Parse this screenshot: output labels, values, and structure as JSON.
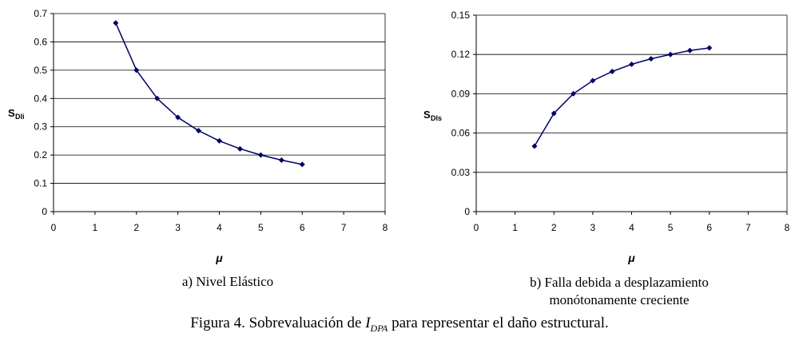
{
  "chart_data": [
    {
      "type": "line",
      "title": "",
      "xlabel": "μ",
      "ylabel": "S",
      "ylabel_sub": "Dli",
      "xlim": [
        0,
        8
      ],
      "ylim": [
        0,
        0.7
      ],
      "xticks": [
        "0",
        "1",
        "2",
        "3",
        "4",
        "5",
        "6",
        "7",
        "8"
      ],
      "yticks": [
        "0",
        "0.1",
        "0.2",
        "0.3",
        "0.4",
        "0.5",
        "0.6",
        "0.7"
      ],
      "grid": "horizontal",
      "series": [
        {
          "x": [
            1.5,
            2,
            2.5,
            3,
            3.5,
            4,
            4.5,
            5,
            5.5,
            6
          ],
          "y": [
            0.667,
            0.5,
            0.4,
            0.333,
            0.286,
            0.25,
            0.222,
            0.2,
            0.182,
            0.167
          ],
          "color": "#000066"
        }
      ]
    },
    {
      "type": "line",
      "title": "",
      "xlabel": "μ",
      "ylabel": "S",
      "ylabel_sub": "Dls",
      "xlim": [
        0,
        8
      ],
      "ylim": [
        0,
        0.15
      ],
      "xticks": [
        "0",
        "1",
        "2",
        "3",
        "4",
        "5",
        "6",
        "7",
        "8"
      ],
      "yticks": [
        "0",
        "0.03",
        "0.06",
        "0.09",
        "0.12",
        "0.15"
      ],
      "grid": "horizontal",
      "series": [
        {
          "x": [
            1.5,
            2,
            2.5,
            3,
            3.5,
            4,
            4.5,
            5,
            5.5,
            6
          ],
          "y": [
            0.05,
            0.075,
            0.09,
            0.1,
            0.107,
            0.1125,
            0.1167,
            0.12,
            0.123,
            0.125
          ],
          "color": "#000066"
        }
      ]
    }
  ],
  "captions": {
    "a": "a) Nivel Elástico",
    "b_line1": "b) Falla debida a desplazamiento",
    "b_line2": "monótonamente creciente",
    "figure_pre": "Figura 4. Sobrevaluación de ",
    "figure_var": "I",
    "figure_var_sub": "DPA",
    "figure_post": " para representar el daño estructural."
  }
}
